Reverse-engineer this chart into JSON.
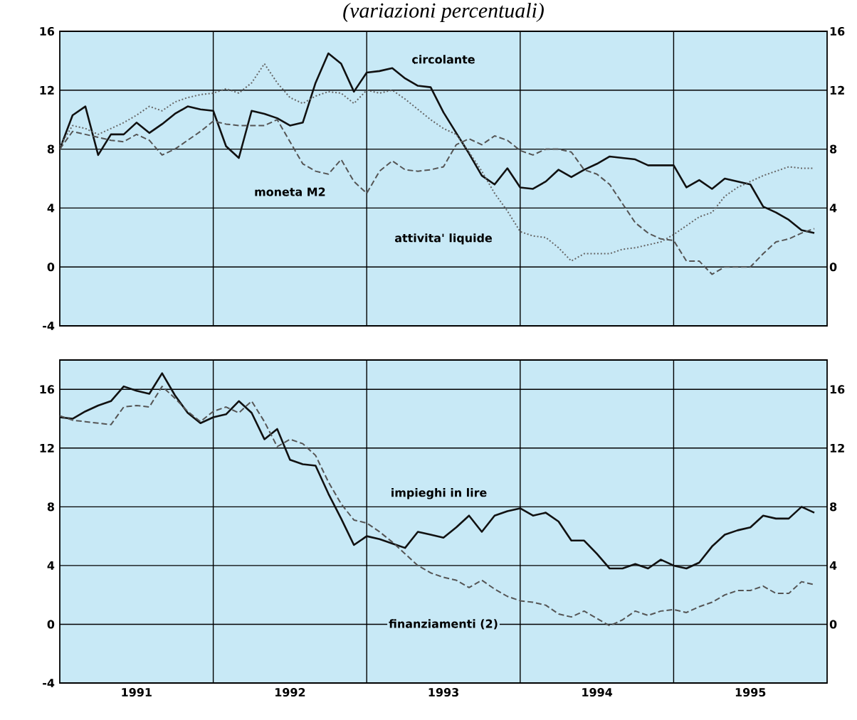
{
  "chart_data": [
    {
      "type": "line",
      "subtitle": "(variazioni percentuali)",
      "x": [
        "1991-01",
        "1991-02",
        "1991-03",
        "1991-04",
        "1991-05",
        "1991-06",
        "1991-07",
        "1991-08",
        "1991-09",
        "1991-10",
        "1991-11",
        "1991-12",
        "1992-01",
        "1992-02",
        "1992-03",
        "1992-04",
        "1992-05",
        "1992-06",
        "1992-07",
        "1992-08",
        "1992-09",
        "1992-10",
        "1992-11",
        "1992-12",
        "1993-01",
        "1993-02",
        "1993-03",
        "1993-04",
        "1993-05",
        "1993-06",
        "1993-07",
        "1993-08",
        "1993-09",
        "1993-10",
        "1993-11",
        "1993-12",
        "1994-01",
        "1994-02",
        "1994-03",
        "1994-04",
        "1994-05",
        "1994-06",
        "1994-07",
        "1994-08",
        "1994-09",
        "1994-10",
        "1994-11",
        "1994-12",
        "1995-01",
        "1995-02",
        "1995-03",
        "1995-04",
        "1995-05",
        "1995-06",
        "1995-07",
        "1995-08",
        "1995-09",
        "1995-10",
        "1995-11",
        "1995-12"
      ],
      "series": [
        {
          "name": "circolante",
          "color": "#111111",
          "line_style": "solid",
          "values": [
            8.0,
            10.3,
            10.9,
            7.6,
            9.0,
            9.0,
            9.8,
            9.1,
            9.7,
            10.4,
            10.9,
            10.7,
            10.6,
            8.2,
            7.4,
            10.6,
            10.4,
            10.1,
            9.6,
            9.8,
            12.5,
            14.5,
            13.8,
            11.9,
            13.2,
            13.3,
            13.5,
            12.8,
            12.3,
            12.2,
            10.5,
            9.1,
            7.7,
            6.2,
            5.6,
            6.7,
            5.4,
            5.3,
            5.8,
            6.6,
            6.1,
            6.6,
            7.0,
            7.5,
            7.4,
            7.3,
            6.9,
            6.9,
            6.9,
            5.4,
            5.9,
            5.3,
            6.0,
            5.8,
            5.6,
            4.1,
            3.7,
            3.2,
            2.5,
            2.3
          ]
        },
        {
          "name": "moneta M2",
          "color": "#555555",
          "line_style": "dashed",
          "values": [
            8.0,
            9.2,
            9.0,
            8.8,
            8.6,
            8.5,
            9.0,
            8.6,
            7.6,
            8.0,
            8.6,
            9.2,
            9.9,
            9.7,
            9.6,
            9.6,
            9.6,
            10.0,
            8.5,
            7.0,
            6.5,
            6.3,
            7.3,
            5.8,
            5.0,
            6.5,
            7.2,
            6.6,
            6.5,
            6.6,
            6.8,
            8.3,
            8.7,
            8.3,
            8.9,
            8.6,
            7.9,
            7.6,
            8.0,
            8.0,
            7.8,
            6.6,
            6.3,
            5.6,
            4.3,
            3.0,
            2.3,
            1.9,
            1.8,
            0.4,
            0.4,
            -0.5,
            0.0,
            0.0,
            0.0,
            0.9,
            1.7,
            1.9,
            2.3,
            2.6
          ]
        },
        {
          "name": "attivita' liquide",
          "color": "#666666",
          "line_style": "dotted",
          "values": [
            8.2,
            9.6,
            9.4,
            9.0,
            9.4,
            9.8,
            10.3,
            10.9,
            10.6,
            11.2,
            11.5,
            11.7,
            11.8,
            12.1,
            11.8,
            12.5,
            13.8,
            12.5,
            11.5,
            11.1,
            11.6,
            11.9,
            11.8,
            11.1,
            12.0,
            11.8,
            12.0,
            11.4,
            10.7,
            10.0,
            9.4,
            9.0,
            7.8,
            6.5,
            5.0,
            3.8,
            2.4,
            2.1,
            2.0,
            1.3,
            0.4,
            0.9,
            0.9,
            0.9,
            1.2,
            1.3,
            1.5,
            1.7,
            2.2,
            2.8,
            3.4,
            3.7,
            4.8,
            5.4,
            5.8,
            6.2,
            6.5,
            6.8,
            6.7,
            6.7
          ]
        }
      ],
      "xlim": [
        "1991-01",
        "1996-01"
      ],
      "xticks": [
        {
          "value": "1992-01",
          "label": null
        },
        {
          "value": "1993-01",
          "label": null
        },
        {
          "value": "1994-01",
          "label": null
        },
        {
          "value": "1995-01",
          "label": null
        }
      ],
      "ylim": [
        -4,
        16
      ],
      "yticks": [
        -4,
        0,
        4,
        8,
        12,
        16
      ],
      "y2lim": [
        -4,
        16
      ],
      "y2ticks": [
        0,
        4,
        8,
        12,
        16
      ],
      "tick_labels": "y",
      "grid": true,
      "legend": false
    },
    {
      "type": "line",
      "x": [
        "1991-01",
        "1991-02",
        "1991-03",
        "1991-04",
        "1991-05",
        "1991-06",
        "1991-07",
        "1991-08",
        "1991-09",
        "1991-10",
        "1991-11",
        "1991-12",
        "1992-01",
        "1992-02",
        "1992-03",
        "1992-04",
        "1992-05",
        "1992-06",
        "1992-07",
        "1992-08",
        "1992-09",
        "1992-10",
        "1992-11",
        "1992-12",
        "1993-01",
        "1993-02",
        "1993-03",
        "1993-04",
        "1993-05",
        "1993-06",
        "1993-07",
        "1993-08",
        "1993-09",
        "1993-10",
        "1993-11",
        "1993-12",
        "1994-01",
        "1994-02",
        "1994-03",
        "1994-04",
        "1994-05",
        "1994-06",
        "1994-07",
        "1994-08",
        "1994-09",
        "1994-10",
        "1994-11",
        "1994-12",
        "1995-01",
        "1995-02",
        "1995-03",
        "1995-04",
        "1995-05",
        "1995-06",
        "1995-07",
        "1995-08",
        "1995-09",
        "1995-10",
        "1995-11",
        "1995-12"
      ],
      "series": [
        {
          "name": "impieghi in lire",
          "color": "#111111",
          "line_style": "solid",
          "values": [
            14.1,
            14.0,
            14.5,
            14.9,
            15.2,
            16.2,
            15.9,
            15.7,
            17.1,
            15.6,
            14.4,
            13.7,
            14.1,
            14.3,
            15.2,
            14.4,
            12.6,
            13.3,
            11.2,
            10.9,
            10.8,
            8.9,
            7.2,
            5.4,
            6.0,
            5.8,
            5.5,
            5.2,
            6.3,
            6.1,
            5.9,
            6.6,
            7.4,
            6.3,
            7.4,
            7.7,
            7.9,
            7.4,
            7.6,
            7.0,
            5.7,
            5.7,
            4.8,
            3.8,
            3.8,
            4.1,
            3.8,
            4.4,
            4.0,
            3.8,
            4.2,
            5.3,
            6.1,
            6.4,
            6.6,
            7.4,
            7.2,
            7.2,
            8.0,
            7.6
          ]
        },
        {
          "name": "finanziamenti (2)",
          "color": "#555555",
          "line_style": "dashed",
          "values": [
            14.2,
            13.9,
            13.8,
            13.7,
            13.6,
            14.8,
            14.9,
            14.8,
            16.2,
            15.4,
            14.5,
            13.8,
            14.5,
            14.8,
            14.4,
            15.2,
            13.8,
            12.1,
            12.6,
            12.3,
            11.5,
            9.7,
            8.2,
            7.1,
            6.9,
            6.3,
            5.6,
            4.8,
            4.0,
            3.5,
            3.2,
            3.0,
            2.5,
            3.0,
            2.4,
            1.9,
            1.6,
            1.5,
            1.3,
            0.7,
            0.5,
            0.9,
            0.4,
            -0.1,
            0.3,
            0.9,
            0.6,
            0.9,
            1.0,
            0.8,
            1.2,
            1.5,
            2.0,
            2.3,
            2.3,
            2.6,
            2.1,
            2.1,
            2.9,
            2.7
          ]
        }
      ],
      "xlim": [
        "1991-01",
        "1996-01"
      ],
      "xticks": [
        {
          "value": "1991-07",
          "label": "1991"
        },
        {
          "value": "1992-07",
          "label": "1992"
        },
        {
          "value": "1993-07",
          "label": "1993"
        },
        {
          "value": "1994-07",
          "label": "1994"
        },
        {
          "value": "1995-07",
          "label": "1995"
        },
        {
          "value": "1992-01",
          "label": null
        },
        {
          "value": "1993-01",
          "label": null
        },
        {
          "value": "1994-01",
          "label": null
        },
        {
          "value": "1995-01",
          "label": null
        }
      ],
      "ylim": [
        -4,
        18
      ],
      "yticks": [
        -4,
        0,
        4,
        8,
        12,
        16
      ],
      "y2lim": [
        -4,
        18
      ],
      "y2ticks": [
        0,
        4,
        8,
        12,
        16
      ],
      "grid": true,
      "legend": false
    }
  ]
}
